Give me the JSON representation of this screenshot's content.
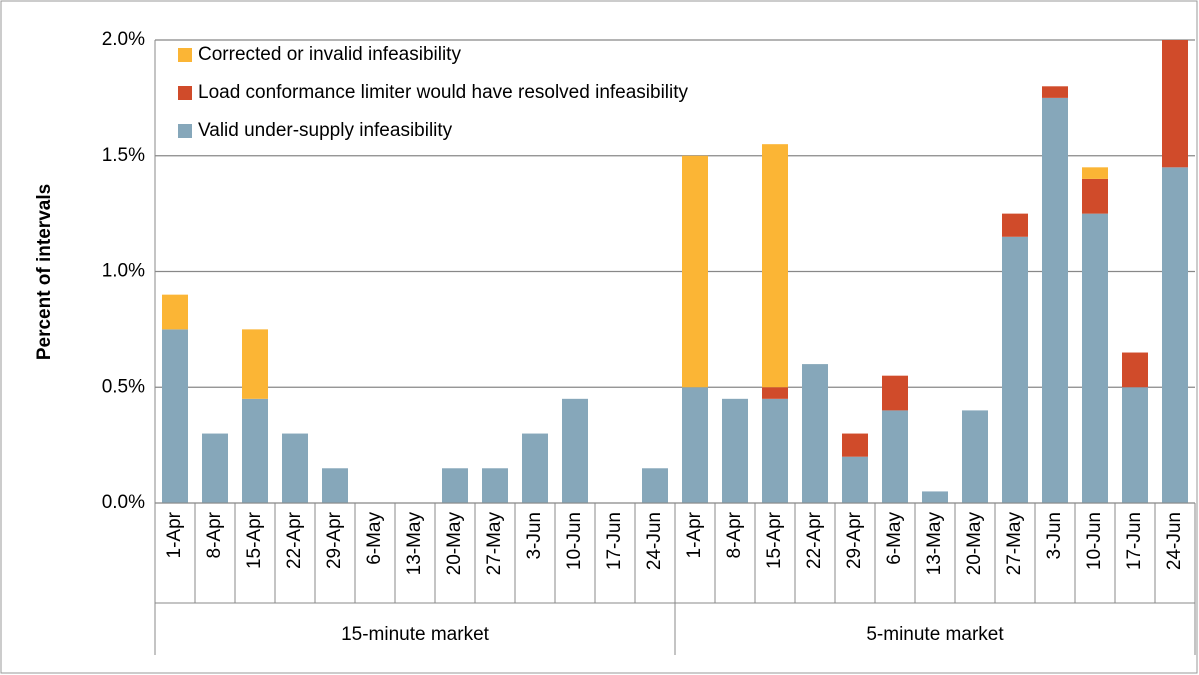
{
  "chart_data": {
    "type": "stacked_bar",
    "y_label": "Percent of intervals",
    "groups": [
      {
        "name": "15-minute market",
        "categories": [
          "1-Apr",
          "8-Apr",
          "15-Apr",
          "22-Apr",
          "29-Apr",
          "6-May",
          "13-May",
          "20-May",
          "27-May",
          "3-Jun",
          "10-Jun",
          "17-Jun",
          "24-Jun"
        ]
      },
      {
        "name": "5-minute market",
        "categories": [
          "1-Apr",
          "8-Apr",
          "15-Apr",
          "22-Apr",
          "29-Apr",
          "6-May",
          "13-May",
          "20-May",
          "27-May",
          "3-Jun",
          "10-Jun",
          "17-Jun",
          "24-Jun"
        ]
      }
    ],
    "series": [
      {
        "name": "Valid under-supply infeasibility",
        "color": "#86a7ba",
        "values": [
          0.75,
          0.3,
          0.45,
          0.3,
          0.15,
          0,
          0,
          0.15,
          0.15,
          0.3,
          0.45,
          0,
          0.15,
          0.5,
          0.45,
          0.45,
          0.6,
          0.2,
          0.4,
          0.05,
          0.4,
          1.15,
          1.75,
          1.25,
          0.5,
          1.45
        ]
      },
      {
        "name": "Load conformance limiter would have resolved infeasibility",
        "color": "#d04b2a",
        "values": [
          0,
          0,
          0,
          0,
          0,
          0,
          0,
          0,
          0,
          0,
          0,
          0,
          0,
          0,
          0,
          0.05,
          0,
          0.1,
          0.15,
          0,
          0,
          0.1,
          0.05,
          0.15,
          0.15,
          0.55
        ]
      },
      {
        "name": "Corrected or invalid infeasibility",
        "color": "#fbb535",
        "values": [
          0.15,
          0,
          0.3,
          0,
          0,
          0,
          0,
          0,
          0,
          0,
          0,
          0,
          0,
          1.0,
          0,
          1.05,
          0,
          0,
          0,
          0,
          0,
          0,
          0,
          0.05,
          0,
          0
        ]
      }
    ],
    "ylim": [
      0,
      2
    ],
    "yticks": [
      {
        "value": 0,
        "label": "0.0%"
      },
      {
        "value": 0.5,
        "label": "0.5%"
      },
      {
        "value": 1,
        "label": "1.0%"
      },
      {
        "value": 1.5,
        "label": "1.5%"
      },
      {
        "value": 2,
        "label": "2.0%"
      }
    ],
    "grid": true,
    "legend": "top-left"
  }
}
